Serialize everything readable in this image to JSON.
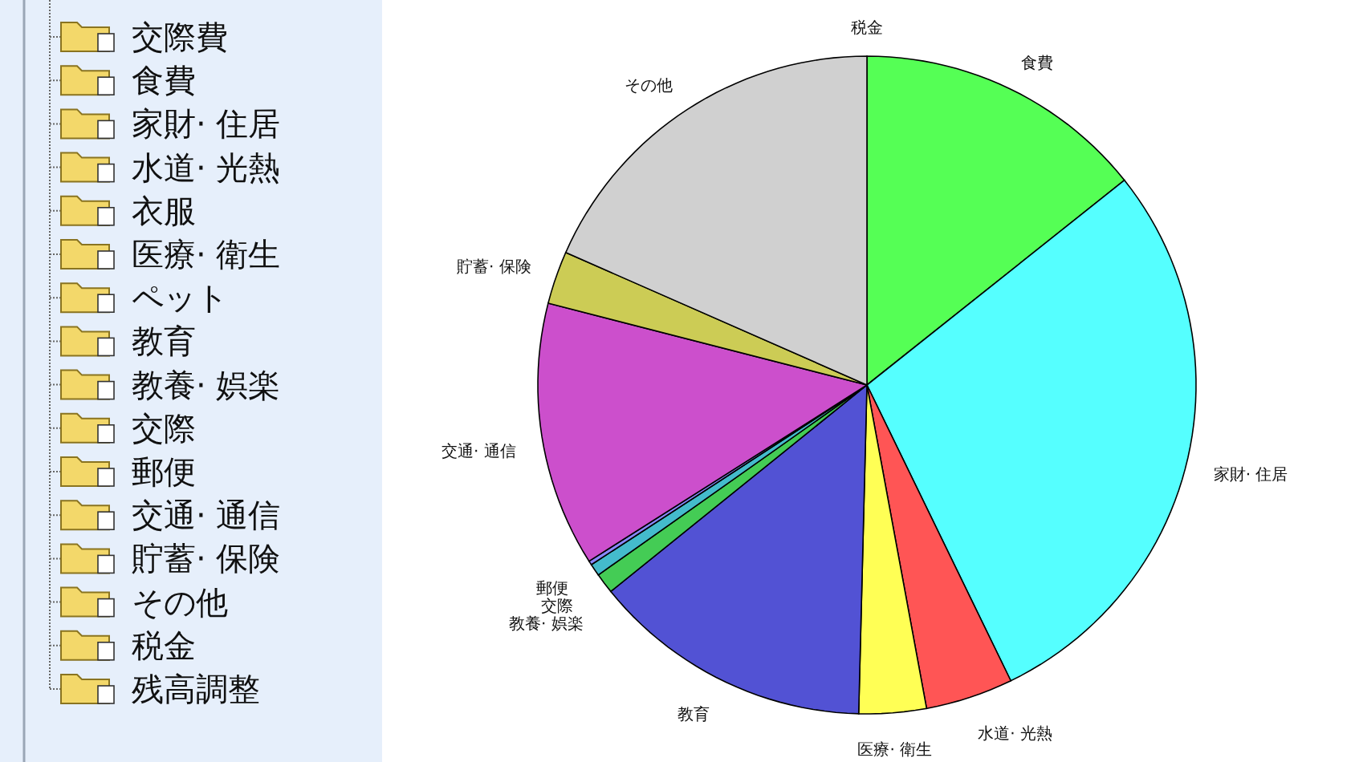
{
  "chart_data": [
    {
      "type": "other",
      "annotations": [
        "交際費",
        "食費",
        "家財· 住居",
        "水道· 光熱",
        "衣服",
        "医療· 衛生",
        "ペット",
        "教育",
        "教養· 娯楽",
        "交際",
        "郵便",
        "交通· 通信",
        "貯蓄· 保険",
        "その他",
        "税金",
        "残高調整"
      ]
    },
    {
      "type": "pie",
      "categories": [
        "食費",
        "家財· 住居",
        "水道· 光熱",
        "医療· 衛生",
        "教育",
        "教養· 娯楽",
        "交際",
        "郵便",
        "交通· 通信",
        "貯蓄· 保険",
        "その他",
        "税金"
      ],
      "values": [
        14.3,
        28.5,
        4.3,
        3.3,
        13.8,
        1.0,
        0.6,
        0.2,
        13.0,
        2.6,
        18.4,
        0
      ],
      "colors": [
        "#55ff55",
        "#55ffff",
        "#ff5555",
        "#ffff55",
        "#5252d4",
        "#44cc55",
        "#44bbcc",
        "#8888ff",
        "#cc4fcc",
        "#cccc55",
        "#d0d0d0",
        null
      ]
    }
  ]
}
